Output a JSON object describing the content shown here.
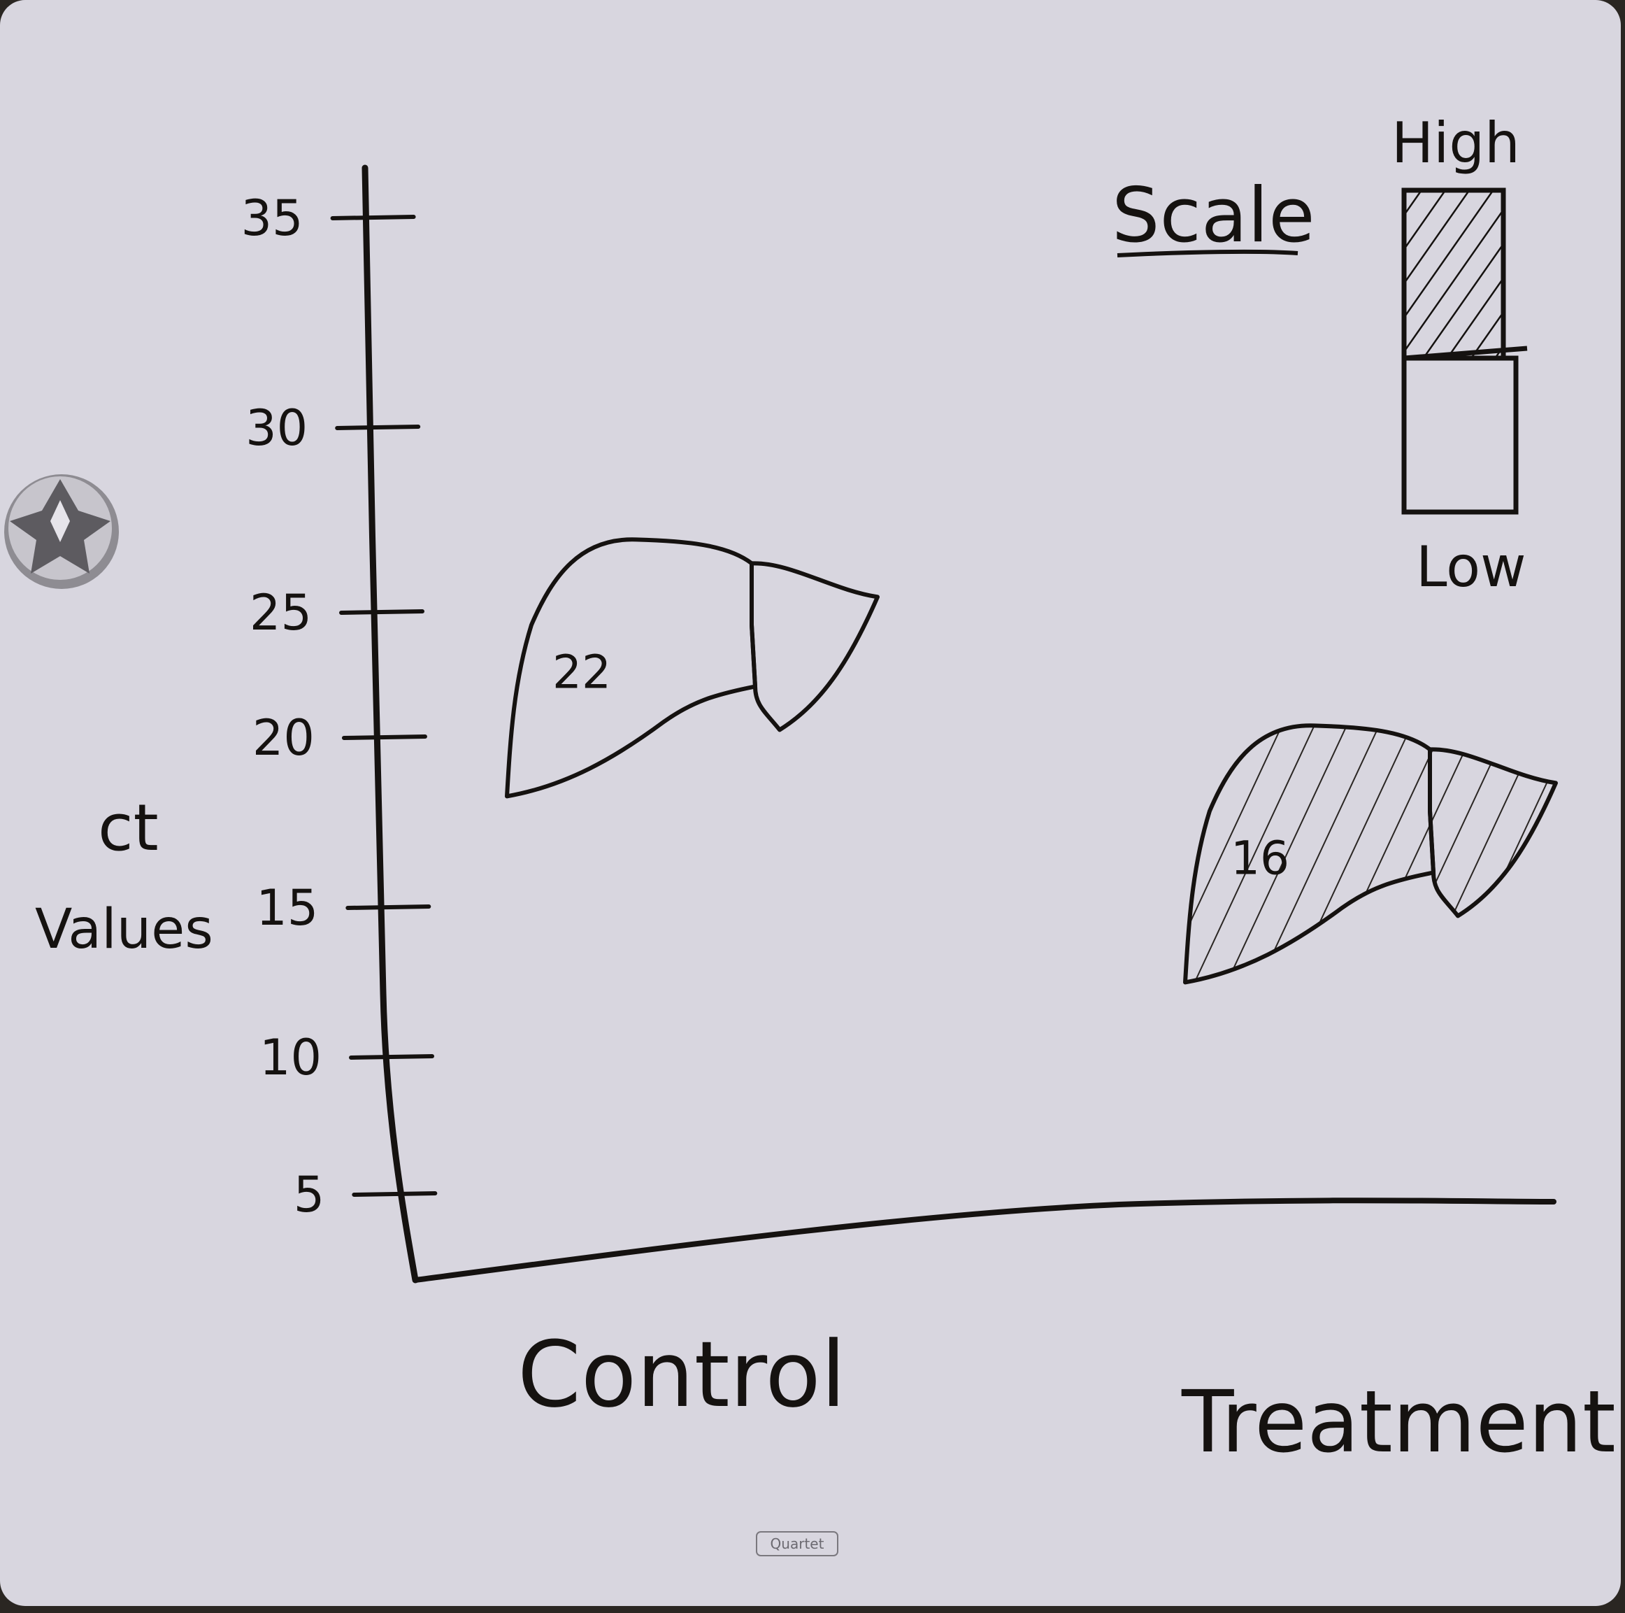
{
  "chart_data": {
    "type": "scatter",
    "title": "",
    "ylabel_line1": "ct",
    "ylabel_line2": "Values",
    "xlabel": "",
    "yticks": [
      5,
      10,
      15,
      20,
      25,
      30,
      35
    ],
    "ylim": [
      5,
      35
    ],
    "categories": [
      "Control",
      "Treatment"
    ],
    "values": [
      22,
      16
    ],
    "value_labels": [
      "22",
      "16"
    ],
    "marker": "liver-outline",
    "grid": false
  },
  "scale_legend": {
    "title": "Scale",
    "high_label": "High",
    "low_label": "Low"
  },
  "board_brand": "Quartet",
  "colors": {
    "board": "#d8d6df",
    "ink": "#151210",
    "frame": "#2a2622",
    "magnet": "#9a989e"
  }
}
